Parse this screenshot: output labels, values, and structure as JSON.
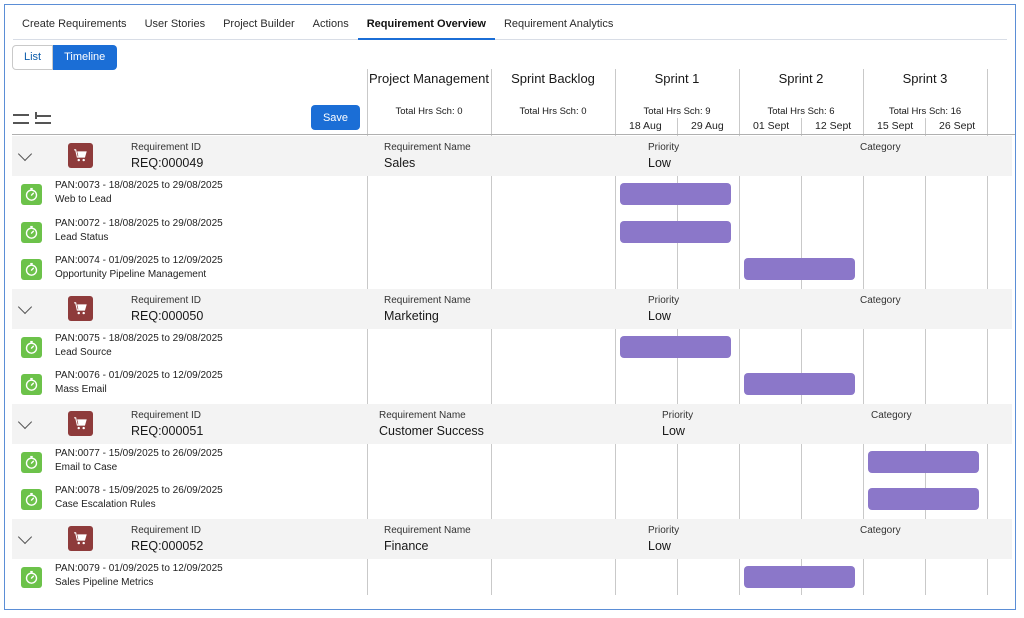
{
  "tabs": [
    "Create Requirements",
    "User Stories",
    "Project Builder",
    "Actions",
    "Requirement Overview",
    "Requirement Analytics"
  ],
  "active_tab": "Requirement Overview",
  "view_toggle": {
    "list_label": "List",
    "timeline_label": "Timeline",
    "active": "Timeline"
  },
  "toolbar": {
    "save_label": "Save",
    "collapse_all_icon": "collapse-all-icon",
    "expand_all_icon": "expand-all-icon"
  },
  "columns": [
    {
      "title": "Project Management",
      "hours": "Total Hrs Sch: 0"
    },
    {
      "title": "Sprint Backlog",
      "hours": "Total Hrs Sch: 0"
    },
    {
      "title": "Sprint 1",
      "hours": "Total Hrs Sch: 9",
      "dates": [
        "18 Aug",
        "29 Aug"
      ]
    },
    {
      "title": "Sprint 2",
      "hours": "Total Hrs Sch: 6",
      "dates": [
        "01 Sept",
        "12 Sept"
      ]
    },
    {
      "title": "Sprint 3",
      "hours": "Total Hrs Sch: 16",
      "dates": [
        "15 Sept",
        "26 Sept"
      ]
    }
  ],
  "field_labels": {
    "id": "Requirement ID",
    "name": "Requirement Name",
    "priority": "Priority",
    "category": "Category"
  },
  "requirements": [
    {
      "id": "REQ:000049",
      "name": "Sales",
      "priority": "Low",
      "category": "",
      "tasks": [
        {
          "code": "PAN:0073 - 18/08/2025 to 29/08/2025",
          "title": "Web to Lead",
          "sprint": "Sprint 1"
        },
        {
          "code": "PAN:0072 - 18/08/2025 to 29/08/2025",
          "title": "Lead Status",
          "sprint": "Sprint 1"
        },
        {
          "code": "PAN:0074 - 01/09/2025 to 12/09/2025",
          "title": "Opportunity Pipeline Management",
          "sprint": "Sprint 2"
        }
      ]
    },
    {
      "id": "REQ:000050",
      "name": "Marketing",
      "priority": "Low",
      "category": "",
      "tasks": [
        {
          "code": "PAN:0075 - 18/08/2025 to 29/08/2025",
          "title": "Lead Source",
          "sprint": "Sprint 1"
        },
        {
          "code": "PAN:0076 - 01/09/2025 to 12/09/2025",
          "title": "Mass Email",
          "sprint": "Sprint 2"
        }
      ]
    },
    {
      "id": "REQ:000051",
      "name": "Customer Success",
      "priority": "Low",
      "category": "",
      "tasks": [
        {
          "code": "PAN:0077 - 15/09/2025 to 26/09/2025",
          "title": "Email to Case",
          "sprint": "Sprint 3"
        },
        {
          "code": "PAN:0078 - 15/09/2025 to 26/09/2025",
          "title": "Case Escalation Rules",
          "sprint": "Sprint 3"
        }
      ]
    },
    {
      "id": "REQ:000052",
      "name": "Finance",
      "priority": "Low",
      "category": "",
      "tasks": [
        {
          "code": "PAN:0079 - 01/09/2025 to 12/09/2025",
          "title": "Sales Pipeline Metrics",
          "sprint": "Sprint 2"
        }
      ]
    }
  ],
  "icons": {
    "requirement": "shopping-cart-icon",
    "task": "stopwatch-icon",
    "expander": "chevron-down-icon"
  },
  "colors": {
    "accent": "#1b6ed6",
    "bar": "#8b77c9",
    "requirement_icon": "#8e3b3b",
    "task_icon": "#6cc24a"
  }
}
